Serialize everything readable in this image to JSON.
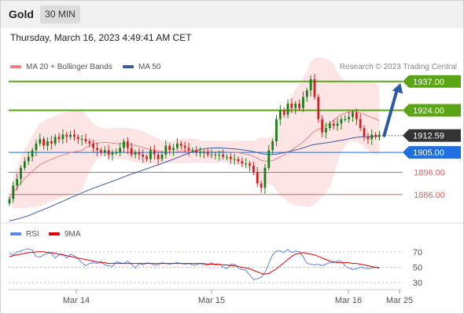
{
  "header": {
    "title": "Gold",
    "timeframe": "30 MIN"
  },
  "datetime": "Thursday, March 16, 2023 4:49:41 AM CET",
  "legend": {
    "ma20_label": "MA 20 + Bollinger Bands",
    "ma50_label": "MA 50",
    "credit": "Research © 2023 Trading Central",
    "rsi_label": "RSI",
    "rsi_ma_label": "9MA"
  },
  "colors": {
    "up_candle": "#1a7f1a",
    "down_candle": "#d62020",
    "ma20": "#f08080",
    "bollinger_fill": "#fde0e0",
    "ma50": "#3a5b9e",
    "resistance": "#5aa516",
    "pivot": "#1f6fe0",
    "support": "#e06060",
    "current": "#333333",
    "arrow": "#2a5aa8",
    "rsi": "#5b86e5",
    "rsi_ma": "#e00000"
  },
  "chart_data": [
    {
      "type": "candlestick",
      "title": "Gold",
      "xlabel": "",
      "ylabel": "",
      "x_tick_labels": [
        "Mar 14",
        "Mar 15",
        "Mar 16",
        "Mar 25"
      ],
      "ylim": [
        1876,
        1944
      ],
      "levels": [
        {
          "label": "1937.00",
          "value": 1937.0,
          "kind": "resistance"
        },
        {
          "label": "1924.00",
          "value": 1924.0,
          "kind": "resistance"
        },
        {
          "label": "1912.59",
          "value": 1912.59,
          "kind": "current"
        },
        {
          "label": "1905.00",
          "value": 1905.0,
          "kind": "pivot"
        },
        {
          "label": "1896.00",
          "value": 1896.0,
          "kind": "support"
        },
        {
          "label": "1886.00",
          "value": 1886.0,
          "kind": "support"
        }
      ],
      "closes": [
        1884,
        1890,
        1893,
        1898,
        1901,
        1903,
        1906,
        1909,
        1911,
        1908,
        1910,
        1909,
        1912,
        1911,
        1913,
        1912,
        1913,
        1912,
        1911,
        1911,
        1910,
        1909,
        1907,
        1906,
        1905,
        1906,
        1904,
        1905,
        1905,
        1907,
        1910,
        1907,
        1904,
        1905,
        1904,
        1903,
        1902,
        1906,
        1904,
        1902,
        1904,
        1908,
        1906,
        1907,
        1909,
        1908,
        1907,
        1906,
        1906,
        1905,
        1905,
        1905,
        1904,
        1904,
        1904,
        1904,
        1903,
        1903,
        1902,
        1902,
        1901,
        1900,
        1900,
        1899,
        1896,
        1891,
        1889,
        1898,
        1906,
        1910,
        1920,
        1924,
        1922,
        1927,
        1925,
        1927,
        1925,
        1930,
        1933,
        1938,
        1930,
        1920,
        1914,
        1916,
        1918,
        1917,
        1918,
        1920,
        1920,
        1921,
        1923,
        1920,
        1916,
        1912,
        1911,
        1913,
        1912,
        1913
      ],
      "forecast": {
        "from": 1912.59,
        "to": 1937.0
      }
    },
    {
      "type": "line",
      "title": "RSI",
      "series": [
        {
          "name": "RSI",
          "values": [
            68,
            66,
            70,
            71,
            73,
            74,
            72,
            64,
            63,
            66,
            68,
            68,
            62,
            66,
            67,
            62,
            67,
            65,
            61,
            56,
            52,
            55,
            56,
            55,
            58,
            53,
            52,
            51,
            57,
            56,
            55,
            58,
            54,
            49,
            55,
            53,
            56,
            55,
            53,
            53,
            56,
            55,
            54,
            55,
            56,
            55,
            54,
            55,
            53,
            53,
            55,
            53,
            53,
            56,
            53,
            54,
            50,
            48,
            54,
            54,
            49,
            47,
            46,
            40,
            34,
            35,
            37,
            43,
            55,
            66,
            71,
            71,
            69,
            73,
            69,
            71,
            70,
            64,
            55,
            54,
            53,
            54,
            52,
            54,
            56,
            56,
            58,
            58,
            52,
            49,
            47,
            48,
            50,
            49,
            48,
            49,
            50,
            50
          ]
        },
        {
          "name": "9MA",
          "values": [
            64,
            65,
            66,
            67,
            68,
            69,
            69,
            70,
            70,
            70,
            69,
            69,
            68,
            67,
            66,
            65,
            64,
            63,
            62,
            61,
            60,
            59,
            58,
            57,
            56,
            56,
            55,
            55,
            55,
            55,
            55,
            55,
            55,
            55,
            55,
            55,
            55,
            55,
            55,
            55,
            55,
            55,
            55,
            55,
            55,
            55,
            55,
            55,
            55,
            55,
            55,
            55,
            54,
            54,
            54,
            54,
            53,
            53,
            52,
            52,
            51,
            50,
            49,
            48,
            46,
            44,
            42,
            41,
            42,
            45,
            48,
            52,
            56,
            60,
            64,
            67,
            68,
            69,
            68,
            67,
            66,
            64,
            62,
            60,
            58,
            57,
            56,
            56,
            56,
            56,
            55,
            55,
            54,
            53,
            52,
            51,
            50,
            49
          ]
        }
      ],
      "y_ticks": [
        70,
        50,
        30
      ],
      "ylim": [
        20,
        83
      ]
    }
  ]
}
